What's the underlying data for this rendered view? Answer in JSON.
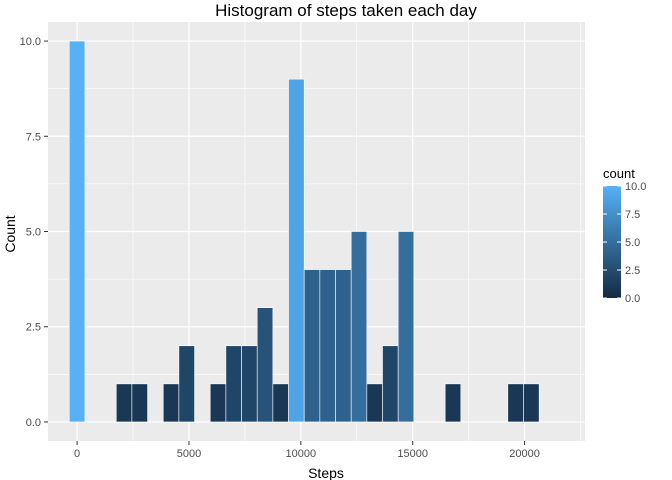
{
  "chart_data": {
    "type": "bar",
    "title": "Histogram of steps taken each day",
    "xlabel": "Steps",
    "ylabel": "Count",
    "xlim": [
      -1300,
      22700
    ],
    "ylim": [
      -0.5,
      10.5
    ],
    "xticks": [
      0,
      5000,
      10000,
      15000,
      20000
    ],
    "xtick_labels": [
      "0",
      "5000",
      "10000",
      "15000",
      "20000"
    ],
    "yticks": [
      0,
      2.5,
      5,
      7.5,
      10
    ],
    "ytick_labels": [
      "0.0",
      "2.5",
      "5.0",
      "7.5",
      "10.0"
    ],
    "bin_width": 700,
    "bins": [
      {
        "x": 0,
        "count": 10
      },
      {
        "x": 700,
        "count": 0
      },
      {
        "x": 1400,
        "count": 0
      },
      {
        "x": 2100,
        "count": 1
      },
      {
        "x": 2800,
        "count": 1
      },
      {
        "x": 3500,
        "count": 0
      },
      {
        "x": 4200,
        "count": 1
      },
      {
        "x": 4900,
        "count": 2
      },
      {
        "x": 5600,
        "count": 0
      },
      {
        "x": 6300,
        "count": 1
      },
      {
        "x": 7000,
        "count": 2
      },
      {
        "x": 7700,
        "count": 2
      },
      {
        "x": 8400,
        "count": 3
      },
      {
        "x": 9100,
        "count": 1
      },
      {
        "x": 9800,
        "count": 9
      },
      {
        "x": 10500,
        "count": 4
      },
      {
        "x": 11200,
        "count": 4
      },
      {
        "x": 11900,
        "count": 4
      },
      {
        "x": 12600,
        "count": 5
      },
      {
        "x": 13300,
        "count": 1
      },
      {
        "x": 14000,
        "count": 2
      },
      {
        "x": 14700,
        "count": 5
      },
      {
        "x": 15400,
        "count": 0
      },
      {
        "x": 16100,
        "count": 0
      },
      {
        "x": 16800,
        "count": 1
      },
      {
        "x": 17500,
        "count": 0
      },
      {
        "x": 18200,
        "count": 0
      },
      {
        "x": 18900,
        "count": 0
      },
      {
        "x": 19600,
        "count": 1
      },
      {
        "x": 20300,
        "count": 1
      }
    ],
    "fill_scale": {
      "low_color": "#132B43",
      "high_color": "#56B1F7",
      "range": [
        0,
        10
      ]
    },
    "legend": {
      "title": "count",
      "position": "right",
      "ticks": [
        0,
        2.5,
        5,
        7.5,
        10
      ],
      "tick_labels": [
        "0.0",
        "2.5",
        "5.0",
        "7.5",
        "10.0"
      ]
    },
    "panel_background": "#EBEBEB",
    "grid": true,
    "grid_color": "#FFFFFF"
  }
}
